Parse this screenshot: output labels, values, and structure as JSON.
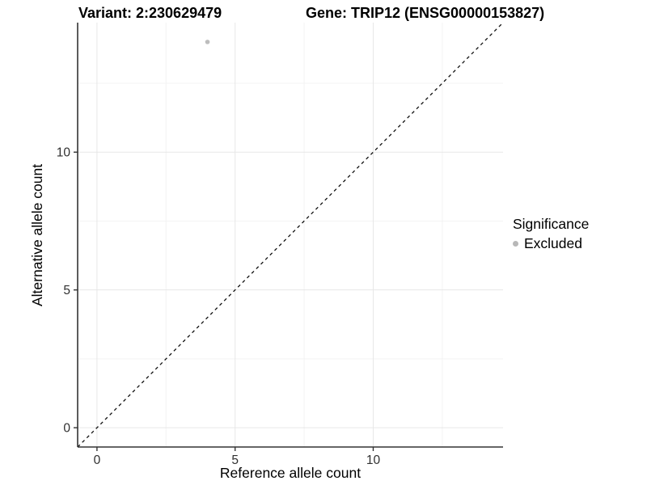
{
  "header": {
    "variant_title": "Variant: 2:230629479",
    "gene_title": "Gene: TRIP12 (ENSG00000153827)"
  },
  "chart_data": {
    "type": "scatter",
    "title_left": "Variant: 2:230629479",
    "title_right": "Gene: TRIP12 (ENSG00000153827)",
    "xlabel": "Reference allele count",
    "ylabel": "Alternative allele count",
    "xlim": [
      -0.7,
      14.7
    ],
    "ylim": [
      -0.7,
      14.7
    ],
    "x_major_ticks": [
      0,
      5,
      10
    ],
    "x_minor_ticks": [
      2.5,
      7.5,
      12.5
    ],
    "y_major_ticks": [
      0,
      5,
      10
    ],
    "y_minor_ticks": [
      2.5,
      7.5,
      12.5
    ],
    "x_tick_labels": [
      "0",
      "5",
      "10"
    ],
    "y_tick_labels": [
      "0",
      "5",
      "10"
    ],
    "grid": true,
    "identity_line": {
      "style": "dashed",
      "slope": 1,
      "intercept": 0,
      "color": "#111111"
    },
    "series": [
      {
        "name": "Excluded",
        "color": "#bdbdbd",
        "points": [
          {
            "x": 4,
            "y": 14
          }
        ]
      }
    ],
    "legend": {
      "title": "Significance",
      "position": "right",
      "items": [
        {
          "label": "Excluded",
          "color": "#b8b8b8"
        }
      ]
    },
    "colors": {
      "background": "#ffffff",
      "grid_major": "#e7e7e7",
      "grid_minor": "#f3f3f3",
      "axis_line": "#333333",
      "tick_text": "#303030",
      "point": "#bdbdbd"
    }
  }
}
